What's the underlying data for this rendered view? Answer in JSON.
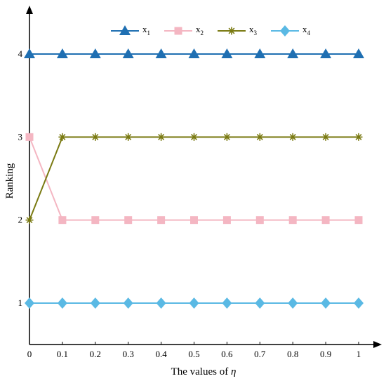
{
  "chart_data": {
    "type": "line",
    "title": "",
    "xlabel": "The values of ",
    "xlabel_symbol": "η",
    "ylabel": "Ranking",
    "x": [
      0,
      0.1,
      0.2,
      0.3,
      0.4,
      0.5,
      0.6,
      0.7,
      0.8,
      0.9,
      1
    ],
    "x_tick_labels": [
      "0",
      "0.1",
      "0.2",
      "0.3",
      "0.4",
      "0.5",
      "0.6",
      "0.7",
      "0.8",
      "0.9",
      "1"
    ],
    "y_ticks": [
      1,
      2,
      3,
      4
    ],
    "y_tick_labels": [
      "1",
      "2",
      "3",
      "4"
    ],
    "xlim": [
      0,
      1.07
    ],
    "ylim": [
      0.5,
      4.6
    ],
    "grid": false,
    "legend_position": "top",
    "series": [
      {
        "name": "x",
        "sub": "1",
        "color": "#1f6fb2",
        "marker": "triangle",
        "values": [
          4,
          4,
          4,
          4,
          4,
          4,
          4,
          4,
          4,
          4,
          4
        ]
      },
      {
        "name": "x",
        "sub": "2",
        "color": "#f4b6c2",
        "marker": "square",
        "values": [
          3,
          2,
          2,
          2,
          2,
          2,
          2,
          2,
          2,
          2,
          2
        ]
      },
      {
        "name": "x",
        "sub": "3",
        "color": "#7a7a12",
        "marker": "asterisk",
        "values": [
          2,
          3,
          3,
          3,
          3,
          3,
          3,
          3,
          3,
          3,
          3
        ]
      },
      {
        "name": "x",
        "sub": "4",
        "color": "#5ab9e4",
        "marker": "diamond",
        "values": [
          1,
          1,
          1,
          1,
          1,
          1,
          1,
          1,
          1,
          1,
          1
        ]
      }
    ]
  }
}
